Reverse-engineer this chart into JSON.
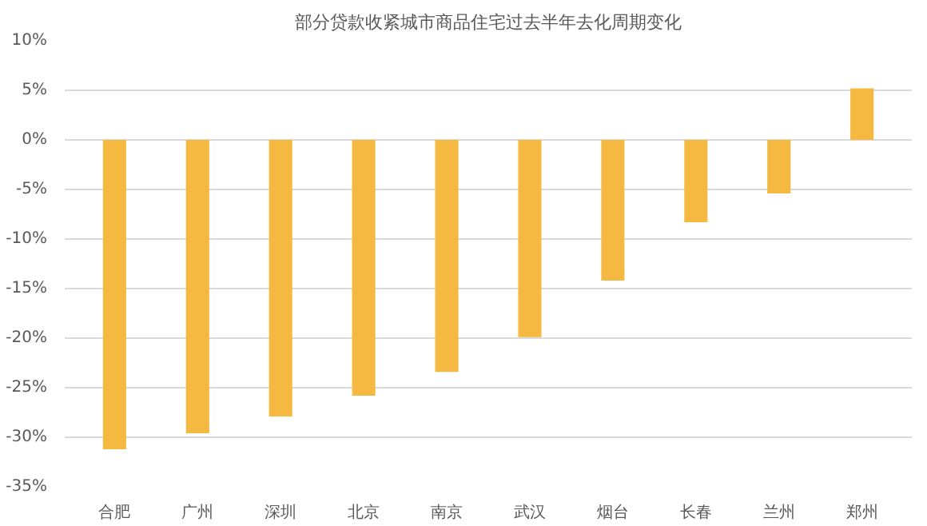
{
  "chart_data": {
    "type": "bar",
    "title": "部分贷款收紧城市商品住宅过去半年去化周期变化",
    "categories": [
      "合肥",
      "广州",
      "深圳",
      "北京",
      "南京",
      "武汉",
      "烟台",
      "长春",
      "兰州",
      "郑州"
    ],
    "values": [
      -31.2,
      -29.6,
      -27.9,
      -25.8,
      -23.4,
      -19.9,
      -14.2,
      -8.3,
      -5.4,
      5.2
    ],
    "color": "#f5b942",
    "ylim": [
      -35,
      10
    ],
    "yticks": [
      {
        "value": 10,
        "label": "10%"
      },
      {
        "value": 5,
        "label": "5%"
      },
      {
        "value": 0,
        "label": "0%"
      },
      {
        "value": -5,
        "label": "-5%"
      },
      {
        "value": -10,
        "label": "-10%"
      },
      {
        "value": -15,
        "label": "-15%"
      },
      {
        "value": -20,
        "label": "-20%"
      },
      {
        "value": -25,
        "label": "-25%"
      },
      {
        "value": -30,
        "label": "-30%"
      },
      {
        "value": -35,
        "label": "-35%"
      }
    ],
    "grid": "y"
  }
}
